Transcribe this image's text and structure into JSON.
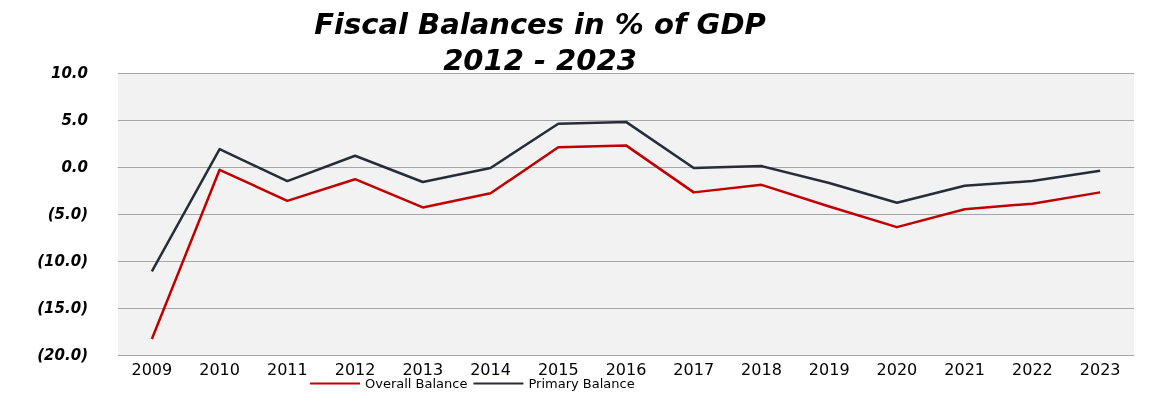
{
  "chart_data": {
    "type": "line",
    "title": "Fiscal Balances in % of GDP",
    "subtitle": "2012 - 2023",
    "categories": [
      "2009",
      "2010",
      "2011",
      "2012",
      "2013",
      "2014",
      "2015",
      "2016",
      "2017",
      "2018",
      "2019",
      "2020",
      "2021",
      "2022",
      "2023"
    ],
    "series": [
      {
        "name": "Overall Balance",
        "color": "#c00000",
        "values": [
          -18.3,
          -0.3,
          -3.6,
          -1.3,
          -4.3,
          -2.8,
          2.1,
          2.3,
          -2.7,
          -1.9,
          -4.2,
          -6.4,
          -4.5,
          -3.9,
          -2.7
        ]
      },
      {
        "name": "Primary Balance",
        "color": "#262c3a",
        "values": [
          -11.1,
          1.9,
          -1.5,
          1.2,
          -1.6,
          -0.1,
          4.6,
          4.8,
          -0.1,
          0.1,
          -1.7,
          -3.8,
          -2.0,
          -1.5,
          -0.4
        ]
      }
    ],
    "ylim": [
      -20,
      10
    ],
    "yticks": [
      {
        "value": -20,
        "label": "(20.0)"
      },
      {
        "value": -15,
        "label": "(15.0)"
      },
      {
        "value": -10,
        "label": "(10.0)"
      },
      {
        "value": -5,
        "label": "(5.0)"
      },
      {
        "value": 0,
        "label": "0.0"
      },
      {
        "value": 5,
        "label": "5.0"
      },
      {
        "value": 10,
        "label": "10.0"
      }
    ],
    "grid": "y",
    "legend": "bottom left",
    "marker": "none",
    "line_style": "solid"
  }
}
